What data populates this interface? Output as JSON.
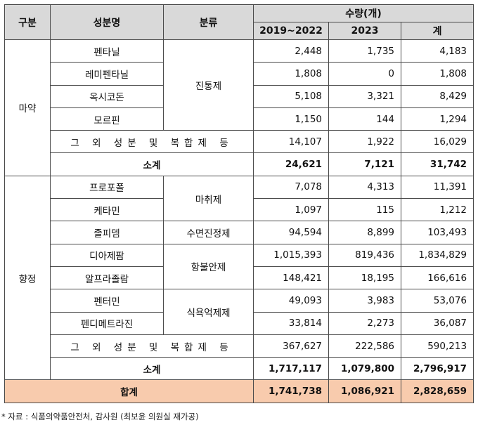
{
  "header": {
    "category": "구분",
    "ingredient": "성분명",
    "classification": "분류",
    "quantity": "수량(개)",
    "period1": "2019~2022",
    "period2": "2023",
    "total": "계"
  },
  "groups": {
    "narcotics": "마약",
    "psychotropics": "향정"
  },
  "classes": {
    "analgesic": "진통제",
    "anesthetic": "마취제",
    "sedative": "수면진정제",
    "anxiolytic": "항불안제",
    "appetite": "식욕억제제"
  },
  "rows": [
    {
      "name": "펜타닐",
      "v1": "2,448",
      "v2": "1,735",
      "total": "4,183"
    },
    {
      "name": "레미펜타닐",
      "v1": "1,808",
      "v2": "0",
      "total": "1,808"
    },
    {
      "name": "옥시코돈",
      "v1": "5,108",
      "v2": "3,321",
      "total": "8,429"
    },
    {
      "name": "모르핀",
      "v1": "1,150",
      "v2": "144",
      "total": "1,294"
    },
    {
      "name": "그 외 성분 및 복합제 등",
      "v1": "14,107",
      "v2": "1,922",
      "total": "16,029"
    },
    {
      "name": "소계",
      "v1": "24,621",
      "v2": "7,121",
      "total": "31,742"
    },
    {
      "name": "프로포폴",
      "v1": "7,078",
      "v2": "4,313",
      "total": "11,391"
    },
    {
      "name": "케타민",
      "v1": "1,097",
      "v2": "115",
      "total": "1,212"
    },
    {
      "name": "졸피뎀",
      "v1": "94,594",
      "v2": "8,899",
      "total": "103,493"
    },
    {
      "name": "디아제팜",
      "v1": "1,015,393",
      "v2": "819,436",
      "total": "1,834,829"
    },
    {
      "name": "알프라졸람",
      "v1": "148,421",
      "v2": "18,195",
      "total": "166,616"
    },
    {
      "name": "펜터민",
      "v1": "49,093",
      "v2": "3,983",
      "total": "53,076"
    },
    {
      "name": "펜디메트라진",
      "v1": "33,814",
      "v2": "2,273",
      "total": "36,087"
    },
    {
      "name": "그 외 성분 및 복합제 등",
      "v1": "367,627",
      "v2": "222,586",
      "total": "590,213"
    },
    {
      "name": "소계",
      "v1": "1,717,117",
      "v2": "1,079,800",
      "total": "2,796,917"
    },
    {
      "name": "합계",
      "v1": "1,741,738",
      "v2": "1,086,921",
      "total": "2,828,659"
    }
  ],
  "footnote": "* 자료 : 식품의약품안전처, 감사원 (최보윤 의원실 재가공)"
}
